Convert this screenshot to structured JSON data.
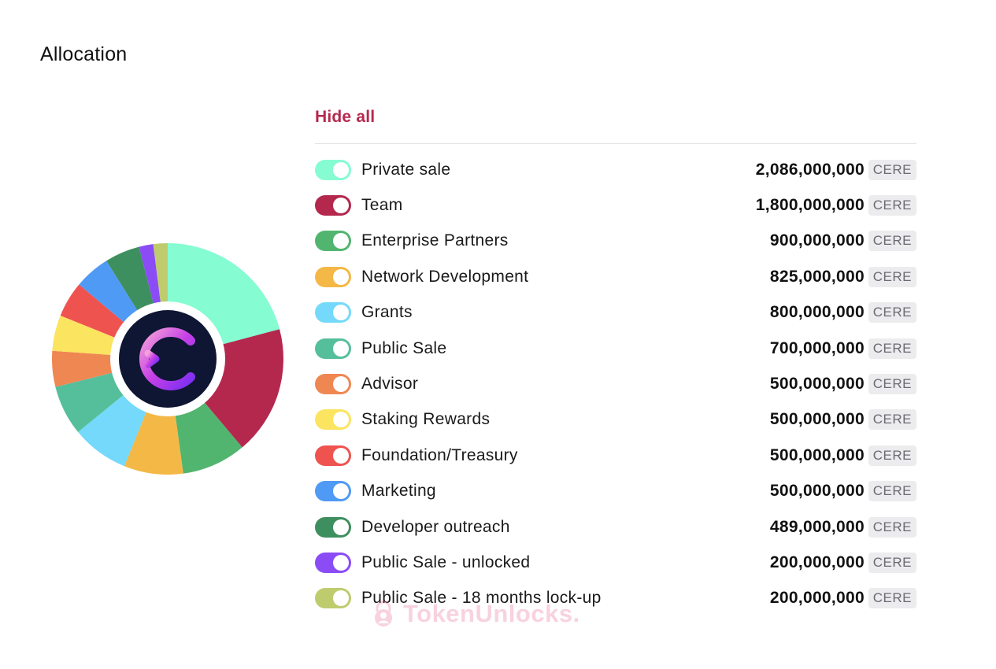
{
  "header": {
    "title": "Allocation"
  },
  "legend": {
    "hide_all_label": "Hide all",
    "unit": "CERE",
    "items": [
      {
        "label": "Private sale",
        "value": "2,086,000,000",
        "amount": 2086000000,
        "color": "#85fcd2",
        "enabled": true
      },
      {
        "label": "Team",
        "value": "1,800,000,000",
        "amount": 1800000000,
        "color": "#b4284e",
        "enabled": true
      },
      {
        "label": "Enterprise Partners",
        "value": "900,000,000",
        "amount": 900000000,
        "color": "#52b56f",
        "enabled": true
      },
      {
        "label": "Network Development",
        "value": "825,000,000",
        "amount": 825000000,
        "color": "#f4b846",
        "enabled": true
      },
      {
        "label": "Grants",
        "value": "800,000,000",
        "amount": 800000000,
        "color": "#74d9fa",
        "enabled": true
      },
      {
        "label": "Public Sale",
        "value": "700,000,000",
        "amount": 700000000,
        "color": "#55bf9c",
        "enabled": true
      },
      {
        "label": "Advisor",
        "value": "500,000,000",
        "amount": 500000000,
        "color": "#ef8752",
        "enabled": true
      },
      {
        "label": "Staking Rewards",
        "value": "500,000,000",
        "amount": 500000000,
        "color": "#fbe45f",
        "enabled": true
      },
      {
        "label": "Foundation/Treasury",
        "value": "500,000,000",
        "amount": 500000000,
        "color": "#ef5350",
        "enabled": true
      },
      {
        "label": "Marketing",
        "value": "500,000,000",
        "amount": 500000000,
        "color": "#4f9af5",
        "enabled": true
      },
      {
        "label": "Developer outreach",
        "value": "489,000,000",
        "amount": 489000000,
        "color": "#3e8f5f",
        "enabled": true
      },
      {
        "label": "Public Sale - unlocked",
        "value": "200,000,000",
        "amount": 200000000,
        "color": "#8b4cf6",
        "enabled": true
      },
      {
        "label": "Public Sale - 18 months lock-up",
        "value": "200,000,000",
        "amount": 200000000,
        "color": "#bfcc6e",
        "enabled": true
      }
    ]
  },
  "chart_data": {
    "type": "pie",
    "categories": [
      "Private sale",
      "Team",
      "Enterprise Partners",
      "Network Development",
      "Grants",
      "Public Sale",
      "Advisor",
      "Staking Rewards",
      "Foundation/Treasury",
      "Marketing",
      "Developer outreach",
      "Public Sale - unlocked",
      "Public Sale - 18 months lock-up"
    ],
    "values": [
      2086000000,
      1800000000,
      900000000,
      825000000,
      800000000,
      700000000,
      500000000,
      500000000,
      500000000,
      500000000,
      489000000,
      200000000,
      200000000
    ],
    "colors": [
      "#85fcd2",
      "#b4284e",
      "#52b56f",
      "#f4b846",
      "#74d9fa",
      "#55bf9c",
      "#ef8752",
      "#fbe45f",
      "#ef5350",
      "#4f9af5",
      "#3e8f5f",
      "#8b4cf6",
      "#bfcc6e"
    ],
    "center_logo": "cere-network-logo-icon"
  },
  "watermark": {
    "icon": "tokenunlocks-logo-icon",
    "text": "TokenUnlocks."
  }
}
